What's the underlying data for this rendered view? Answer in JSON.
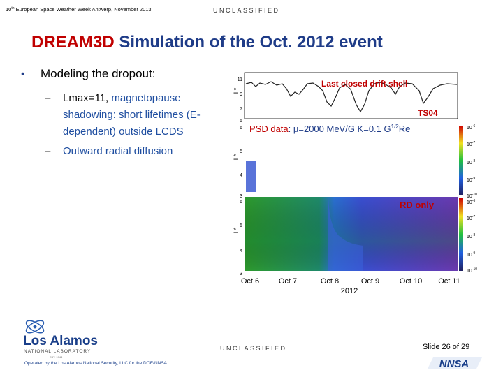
{
  "header": {
    "conference": {
      "number": "10",
      "suffix": "th",
      "text": " European Space Weather Week Antwerp, November 2013"
    },
    "classification": "UNCLASSIFIED"
  },
  "title": {
    "highlight": "DREAM3D",
    "rest": " Simulation of the Oct. 2012 event"
  },
  "bullets": [
    {
      "text": "Modeling the dropout:",
      "subitems": [
        {
          "lead": "Lmax=11,",
          "lines": [
            " magnetopause",
            "shadowing: short lifetimes (E-",
            "dependent) outside LCDS"
          ]
        },
        {
          "lead": "",
          "lines": [
            "Outward radial diffusion"
          ]
        }
      ]
    }
  ],
  "figure": {
    "panels": [
      {
        "ylabel": "L*",
        "yticks": [
          "11",
          "9",
          "7",
          "5"
        ],
        "labels": [
          "Last closed drift shell",
          "TS04"
        ]
      },
      {
        "ylabel": "L*",
        "yticks": [
          "6",
          "5",
          "4",
          "3"
        ],
        "title": [
          "PSD data",
          ": μ=2000 MeV/G K=0.1 G",
          "1/2",
          "Re"
        ],
        "colorbar": [
          {
            "base": "10",
            "exp": "-6"
          },
          {
            "base": "10",
            "exp": "-7"
          },
          {
            "base": "10",
            "exp": "-8"
          },
          {
            "base": "10",
            "exp": "-9"
          },
          {
            "base": "10",
            "exp": "-10"
          }
        ]
      },
      {
        "ylabel": "L*",
        "yticks": [
          "6",
          "5",
          "4",
          "3"
        ],
        "title": "RD only",
        "colorbar": [
          {
            "base": "10",
            "exp": "-6"
          },
          {
            "base": "10",
            "exp": "-7"
          },
          {
            "base": "10",
            "exp": "-8"
          },
          {
            "base": "10",
            "exp": "-9"
          },
          {
            "base": "10",
            "exp": "-10"
          }
        ]
      }
    ],
    "xticks": [
      "Oct 6",
      "Oct 7",
      "Oct 8",
      "Oct 9",
      "Oct 10",
      "Oct 11"
    ],
    "xyear": "2012"
  },
  "footer": {
    "classification": "UNCLASSIFIED",
    "slide": "Slide 26 of 29",
    "operator": "Operated by the Los Alamos National Security, LLC for the DOE/NNSA",
    "logo": {
      "name": "Los Alamos",
      "sub": "NATIONAL LABORATORY",
      "est": "EST. 1943"
    },
    "agency": "NNSA"
  }
}
